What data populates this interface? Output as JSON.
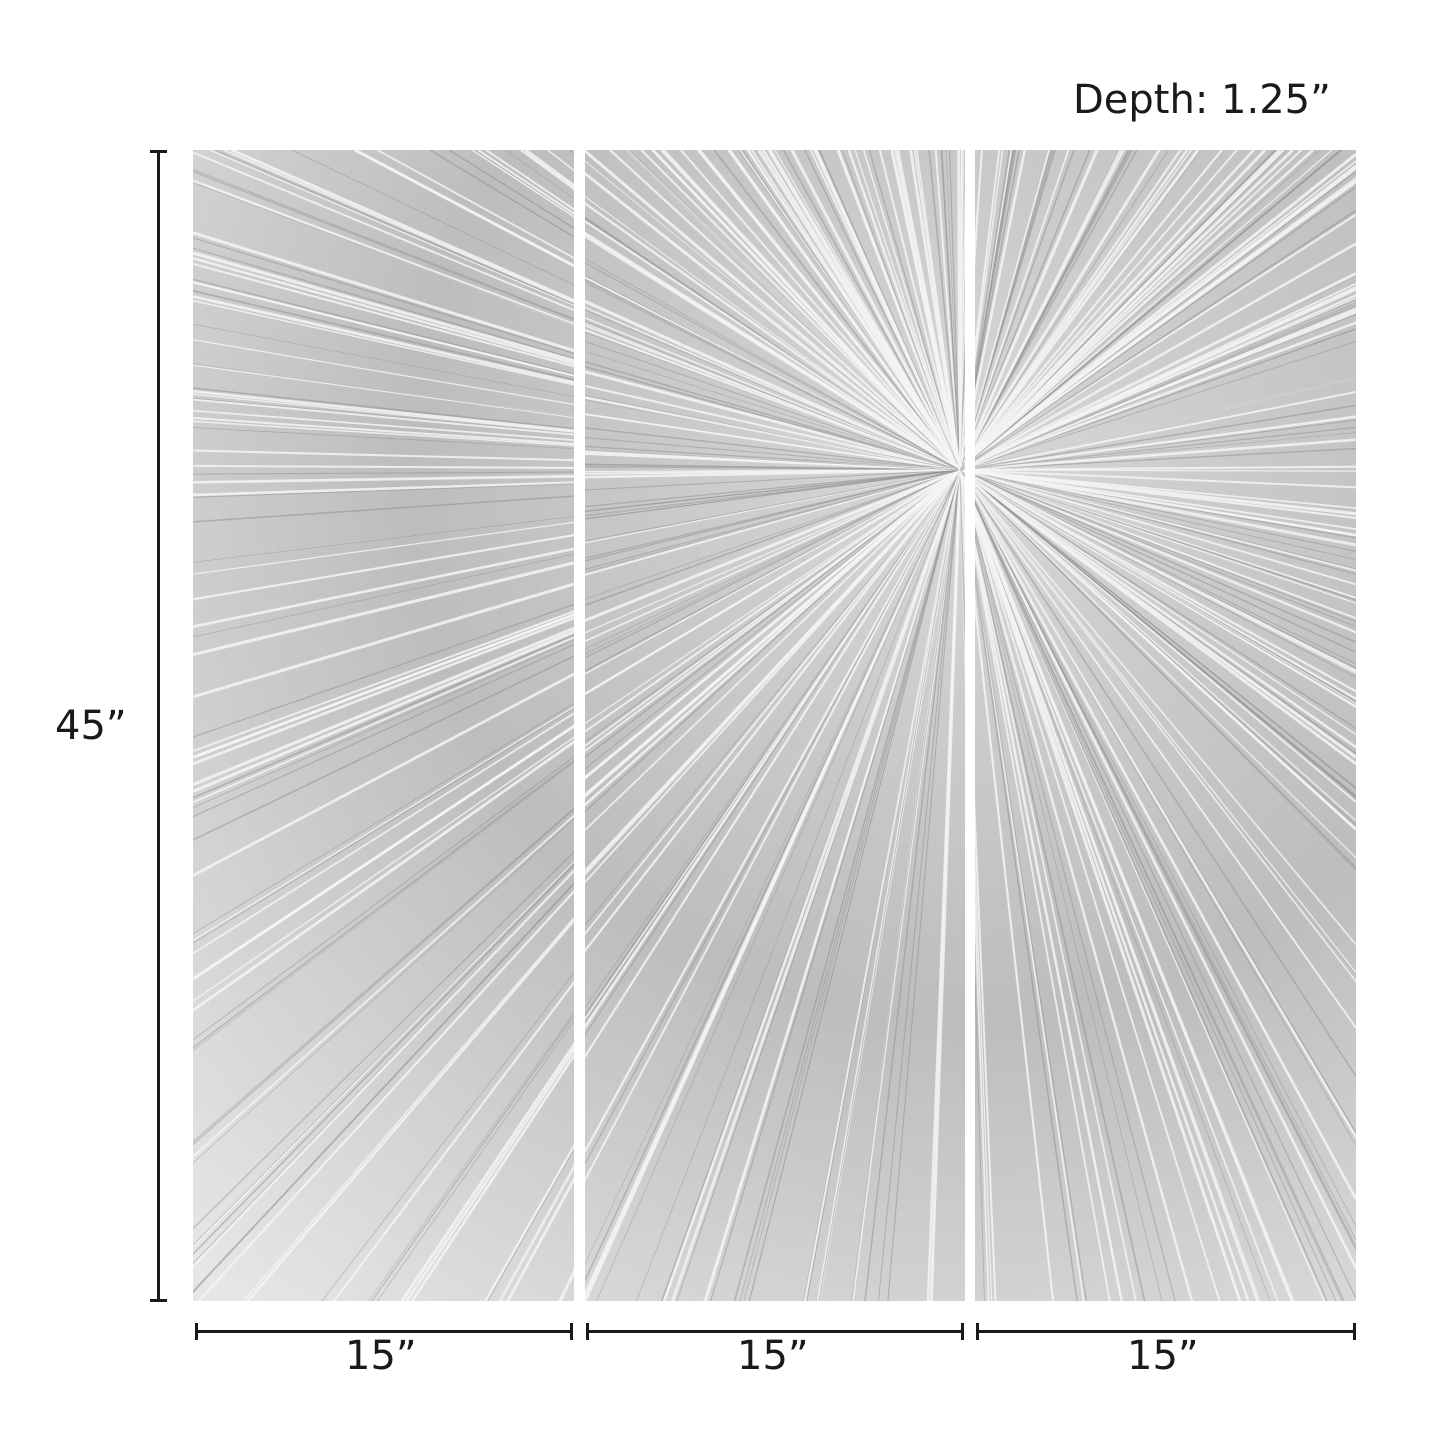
{
  "depth_label": "Depth: 1.25”",
  "height_label": "45”",
  "width_labels": [
    "15”",
    "15”",
    "15”"
  ],
  "panel_count": 3,
  "colors": {
    "silver": "#c8c8c8",
    "highlight": "#f4f4f4",
    "shadow": "#8e8e8e",
    "dimension_line": "#1a1a1a"
  }
}
